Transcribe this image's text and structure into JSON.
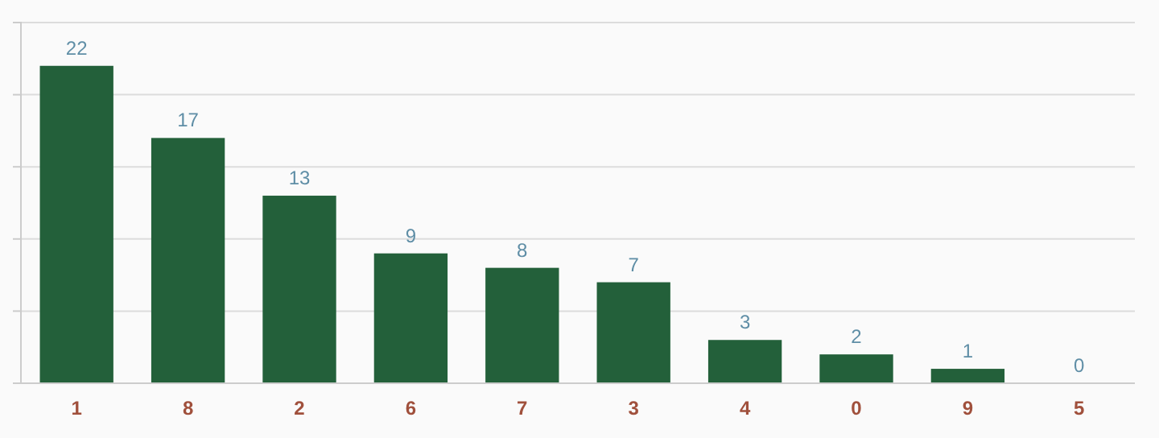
{
  "chart_data": {
    "type": "bar",
    "categories": [
      "1",
      "8",
      "2",
      "6",
      "7",
      "3",
      "4",
      "0",
      "9",
      "5"
    ],
    "values": [
      22,
      17,
      13,
      9,
      8,
      7,
      3,
      2,
      1,
      0
    ],
    "color": "#23603a",
    "ylim": [
      0,
      25
    ],
    "yticks": [
      {
        "value": 0,
        "label": null
      },
      {
        "value": 5,
        "label": null
      },
      {
        "value": 10,
        "label": null
      },
      {
        "value": 15,
        "label": null
      },
      {
        "value": 20,
        "label": null
      },
      {
        "value": 25,
        "label": null
      }
    ],
    "grid": "y",
    "tick_labels": "x",
    "data_labels": true
  }
}
